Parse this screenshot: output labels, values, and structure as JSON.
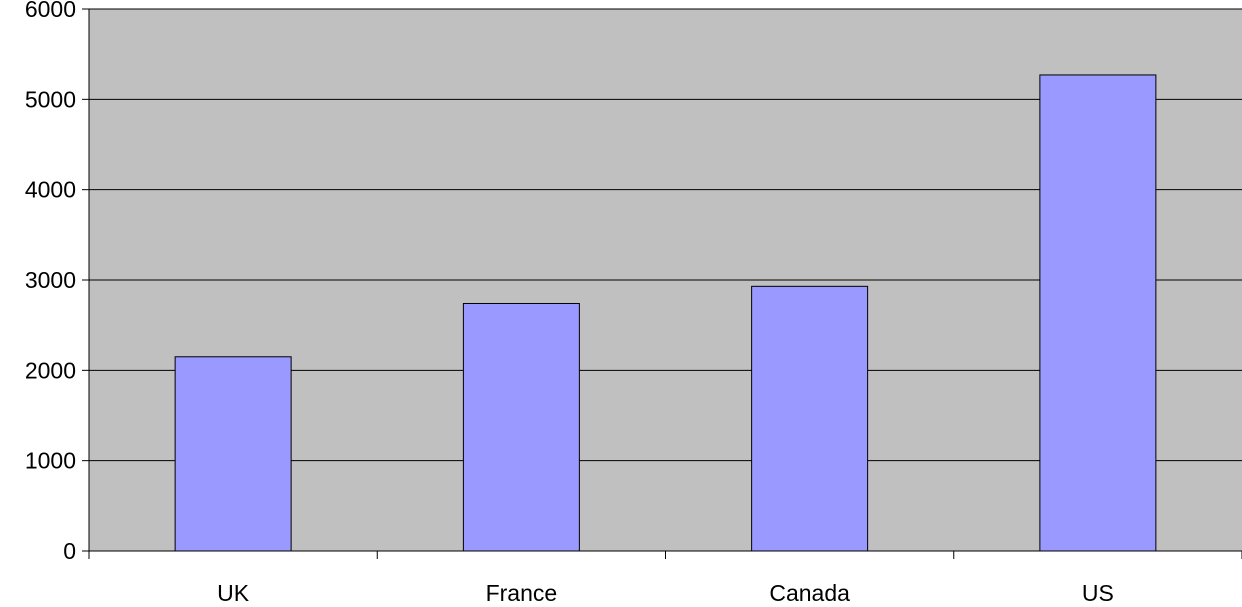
{
  "chart_data": {
    "type": "bar",
    "title": "",
    "xlabel": "",
    "ylabel": "",
    "categories": [
      "UK",
      "France",
      "Canada",
      "US"
    ],
    "values": [
      2150,
      2740,
      2930,
      5270
    ],
    "ylim": [
      0,
      6000
    ],
    "yticks": [
      0,
      1000,
      2000,
      3000,
      4000,
      5000,
      6000
    ],
    "grid": true,
    "legend": "none",
    "colors": {
      "plot_background": "#c0c0c0",
      "bar_fill": "#9999ff",
      "bar_stroke": "#000000",
      "gridline": "#000000"
    }
  }
}
